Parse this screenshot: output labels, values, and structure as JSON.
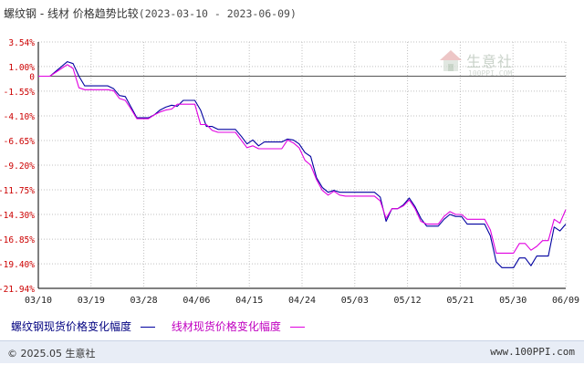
{
  "title": {
    "main": "螺纹钢 - 线材 价格趋势比较",
    "range": "(2023-03-10 - 2023-06-09)"
  },
  "watermark": {
    "name": "生意社",
    "url": "100PPI.COM"
  },
  "legend": {
    "series1": "螺纹钢现货价格变化幅度",
    "series2": "线材现货价格变化幅度"
  },
  "footer": {
    "copyright": "© 2025.05 生意社",
    "site": "www.100PPI.com"
  },
  "colors": {
    "series1": "#0000a0",
    "series2": "#e000e0",
    "axis": "#000000",
    "grid": "#c0c0c0",
    "tick_label": "#cc0000"
  },
  "chart_data": {
    "type": "line",
    "title": "螺纹钢 - 线材 价格趋势比较",
    "x_tick_labels": [
      "03/10",
      "03/19",
      "03/28",
      "04/06",
      "04/15",
      "04/24",
      "05/03",
      "05/12",
      "05/21",
      "05/30",
      "06/09"
    ],
    "x_range_days": [
      0,
      91
    ],
    "y_tick_labels": [
      "3.54%",
      "1.00%",
      "0",
      "-1.55%",
      "-4.10%",
      "-6.65%",
      "-9.20%",
      "-11.75%",
      "-14.30%",
      "-16.85%",
      "-19.40%",
      "-21.94%"
    ],
    "ylim": [
      -21.94,
      3.54
    ],
    "grid": true,
    "series": [
      {
        "name": "螺纹钢现货价格变化幅度",
        "points": [
          [
            0,
            0
          ],
          [
            2,
            0
          ],
          [
            4,
            1.0
          ],
          [
            5,
            1.5
          ],
          [
            6,
            1.3
          ],
          [
            7,
            0
          ],
          [
            8,
            -1.0
          ],
          [
            11,
            -1.0
          ],
          [
            12,
            -1.0
          ],
          [
            13,
            -1.3
          ],
          [
            14,
            -2.0
          ],
          [
            15,
            -2.1
          ],
          [
            16,
            -3.2
          ],
          [
            17,
            -4.3
          ],
          [
            18,
            -4.3
          ],
          [
            19,
            -4.3
          ],
          [
            20,
            -4.0
          ],
          [
            21,
            -3.5
          ],
          [
            22,
            -3.2
          ],
          [
            23,
            -3.0
          ],
          [
            24,
            -3.1
          ],
          [
            25,
            -2.5
          ],
          [
            26,
            -2.5
          ],
          [
            27,
            -2.5
          ],
          [
            28,
            -3.5
          ],
          [
            29,
            -5.2
          ],
          [
            30,
            -5.2
          ],
          [
            31,
            -5.5
          ],
          [
            32,
            -5.5
          ],
          [
            33,
            -5.5
          ],
          [
            34,
            -5.5
          ],
          [
            35,
            -6.2
          ],
          [
            36,
            -7.0
          ],
          [
            37,
            -6.6
          ],
          [
            38,
            -7.2
          ],
          [
            39,
            -6.8
          ],
          [
            40,
            -6.8
          ],
          [
            41,
            -6.8
          ],
          [
            42,
            -6.8
          ],
          [
            43,
            -6.5
          ],
          [
            44,
            -6.6
          ],
          [
            45,
            -7.0
          ],
          [
            46,
            -7.9
          ],
          [
            47,
            -8.3
          ],
          [
            48,
            -10.5
          ],
          [
            49,
            -11.5
          ],
          [
            50,
            -12.0
          ],
          [
            51,
            -11.8
          ],
          [
            52,
            -12.0
          ],
          [
            53,
            -12.0
          ],
          [
            54,
            -12.0
          ],
          [
            55,
            -12.0
          ],
          [
            56,
            -12.0
          ],
          [
            57,
            -12.0
          ],
          [
            58,
            -12.0
          ],
          [
            59,
            -12.5
          ],
          [
            60,
            -15.0
          ],
          [
            61,
            -13.7
          ],
          [
            62,
            -13.7
          ],
          [
            63,
            -13.3
          ],
          [
            64,
            -12.6
          ],
          [
            65,
            -13.5
          ],
          [
            66,
            -14.7
          ],
          [
            67,
            -15.5
          ],
          [
            68,
            -15.5
          ],
          [
            69,
            -15.5
          ],
          [
            70,
            -14.8
          ],
          [
            71,
            -14.3
          ],
          [
            72,
            -14.5
          ],
          [
            73,
            -14.5
          ],
          [
            74,
            -15.3
          ],
          [
            75,
            -15.3
          ],
          [
            76,
            -15.3
          ],
          [
            77,
            -15.3
          ],
          [
            78,
            -16.5
          ],
          [
            79,
            -19.2
          ],
          [
            80,
            -19.8
          ],
          [
            81,
            -19.8
          ],
          [
            82,
            -19.8
          ],
          [
            83,
            -18.8
          ],
          [
            84,
            -18.8
          ],
          [
            85,
            -19.6
          ],
          [
            86,
            -18.6
          ],
          [
            87,
            -18.6
          ],
          [
            88,
            -18.6
          ],
          [
            89,
            -15.6
          ],
          [
            90,
            -16.0
          ],
          [
            91,
            -15.3
          ]
        ]
      },
      {
        "name": "线材现货价格变化幅度",
        "points": [
          [
            0,
            0
          ],
          [
            2,
            0
          ],
          [
            4,
            0.8
          ],
          [
            5,
            1.2
          ],
          [
            6,
            0.8
          ],
          [
            7,
            -1.2
          ],
          [
            8,
            -1.4
          ],
          [
            11,
            -1.4
          ],
          [
            12,
            -1.4
          ],
          [
            13,
            -1.5
          ],
          [
            14,
            -2.3
          ],
          [
            15,
            -2.5
          ],
          [
            16,
            -3.4
          ],
          [
            17,
            -4.4
          ],
          [
            18,
            -4.4
          ],
          [
            19,
            -4.4
          ],
          [
            20,
            -4.0
          ],
          [
            21,
            -3.7
          ],
          [
            22,
            -3.5
          ],
          [
            23,
            -3.4
          ],
          [
            24,
            -2.9
          ],
          [
            25,
            -2.9
          ],
          [
            26,
            -2.9
          ],
          [
            27,
            -2.9
          ],
          [
            28,
            -5.0
          ],
          [
            29,
            -5.0
          ],
          [
            30,
            -5.6
          ],
          [
            31,
            -5.8
          ],
          [
            32,
            -5.8
          ],
          [
            33,
            -5.8
          ],
          [
            34,
            -5.8
          ],
          [
            35,
            -6.6
          ],
          [
            36,
            -7.4
          ],
          [
            37,
            -7.2
          ],
          [
            38,
            -7.5
          ],
          [
            39,
            -7.5
          ],
          [
            40,
            -7.5
          ],
          [
            41,
            -7.5
          ],
          [
            42,
            -7.5
          ],
          [
            43,
            -6.6
          ],
          [
            44,
            -6.9
          ],
          [
            45,
            -7.4
          ],
          [
            46,
            -8.7
          ],
          [
            47,
            -9.2
          ],
          [
            48,
            -10.7
          ],
          [
            49,
            -11.8
          ],
          [
            50,
            -12.3
          ],
          [
            51,
            -11.9
          ],
          [
            52,
            -12.3
          ],
          [
            53,
            -12.4
          ],
          [
            54,
            -12.4
          ],
          [
            55,
            -12.4
          ],
          [
            56,
            -12.4
          ],
          [
            57,
            -12.4
          ],
          [
            58,
            -12.4
          ],
          [
            59,
            -12.9
          ],
          [
            60,
            -14.7
          ],
          [
            61,
            -13.7
          ],
          [
            62,
            -13.7
          ],
          [
            63,
            -13.4
          ],
          [
            64,
            -12.8
          ],
          [
            65,
            -13.7
          ],
          [
            66,
            -15.0
          ],
          [
            67,
            -15.3
          ],
          [
            68,
            -15.3
          ],
          [
            69,
            -15.3
          ],
          [
            70,
            -14.5
          ],
          [
            71,
            -14.0
          ],
          [
            72,
            -14.3
          ],
          [
            73,
            -14.3
          ],
          [
            74,
            -14.8
          ],
          [
            75,
            -14.8
          ],
          [
            76,
            -14.8
          ],
          [
            77,
            -14.8
          ],
          [
            78,
            -15.9
          ],
          [
            79,
            -18.3
          ],
          [
            80,
            -18.3
          ],
          [
            81,
            -18.3
          ],
          [
            82,
            -18.3
          ],
          [
            83,
            -17.3
          ],
          [
            84,
            -17.3
          ],
          [
            85,
            -18.0
          ],
          [
            86,
            -17.6
          ],
          [
            87,
            -17.0
          ],
          [
            88,
            -17.0
          ],
          [
            89,
            -14.8
          ],
          [
            90,
            -15.2
          ],
          [
            91,
            -13.8
          ]
        ]
      }
    ]
  }
}
